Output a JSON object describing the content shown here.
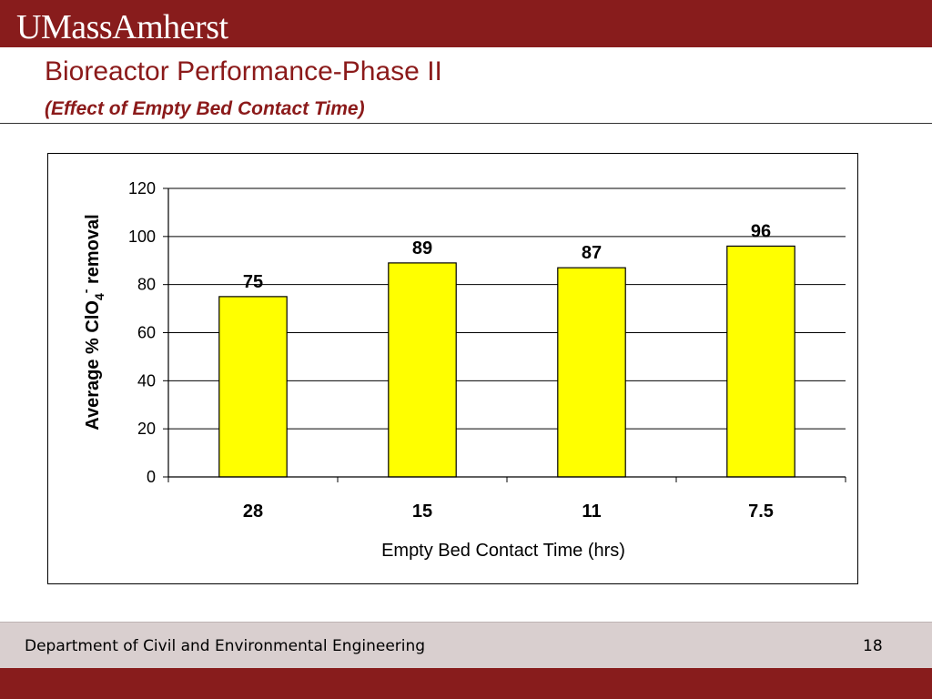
{
  "header": {
    "logo_text": "UMassAmherst",
    "title": "Bioreactor Performance-Phase II",
    "subtitle": "(Effect of Empty Bed Contact Time)"
  },
  "colors": {
    "brand": "#881c1c",
    "title": "#8b1a1a",
    "bar_fill": "#ffff00",
    "bar_stroke": "#000000",
    "footer_bg": "#d9cfcf"
  },
  "chart_data": {
    "type": "bar",
    "categories": [
      "28",
      "15",
      "11",
      "7.5"
    ],
    "values": [
      75,
      89,
      87,
      96
    ],
    "data_labels": [
      "75",
      "89",
      "87",
      "96"
    ],
    "xlabel": "Empty Bed Contact Time (hrs)",
    "ylabel": {
      "prefix": "Average % ClO",
      "sub": "4",
      "sup": "-",
      "suffix": " removal"
    },
    "ylim": [
      0,
      120
    ],
    "yticks": [
      0,
      20,
      40,
      60,
      80,
      100,
      120
    ],
    "grid": true,
    "legend": "none"
  },
  "footer": {
    "department": "Department of Civil and Environmental Engineering",
    "page_number": "18"
  }
}
